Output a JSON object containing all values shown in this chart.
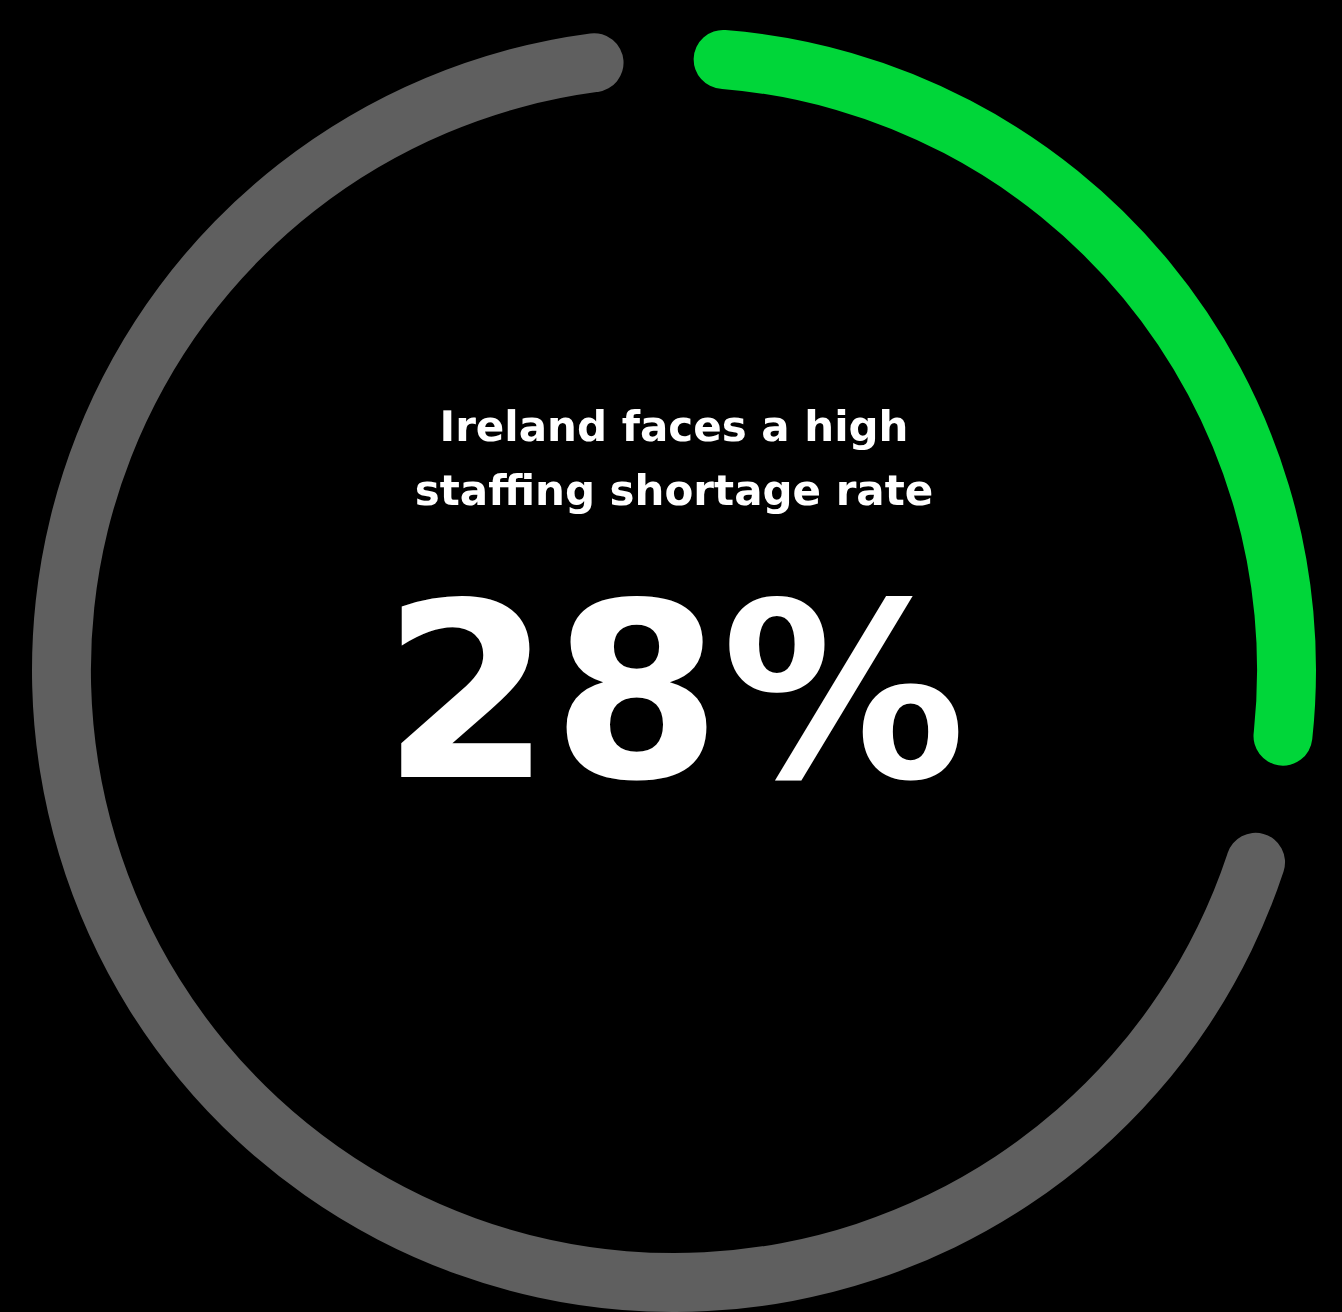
{
  "chart_data": {
    "type": "donut",
    "title": "Ireland faces a high staffing shortage rate",
    "categories": [
      null,
      null
    ],
    "values": [
      28,
      72
    ],
    "colors": [
      "#00d639",
      "#5f5f5f"
    ],
    "annotations": [
      "28%"
    ],
    "legend": false
  }
}
